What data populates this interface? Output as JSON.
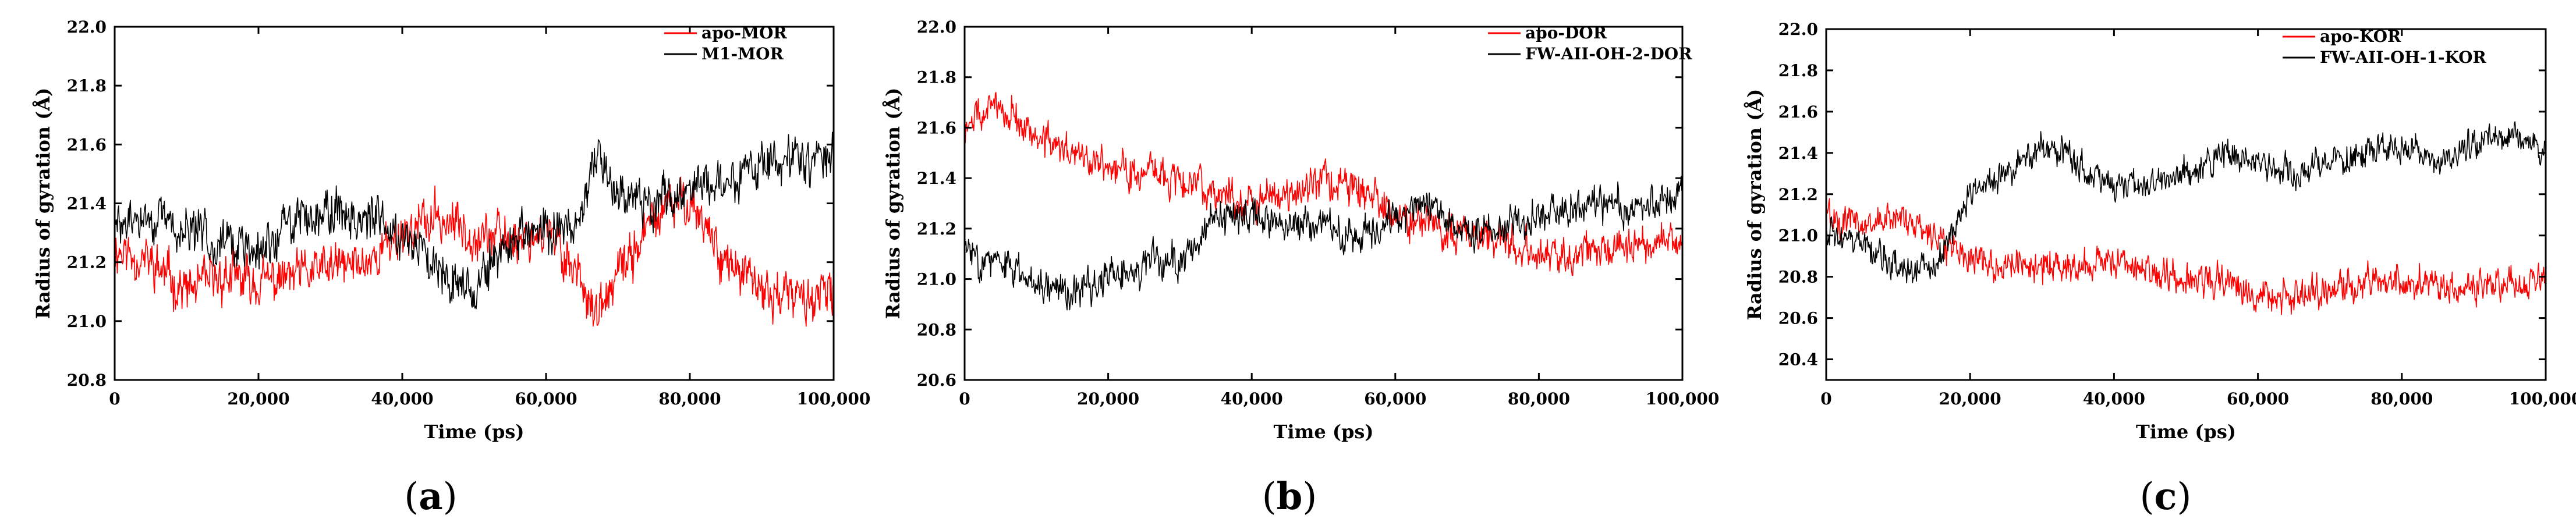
{
  "chart_data": [
    {
      "type": "line",
      "panel_label": "a",
      "xlabel": "Time (ps)",
      "ylabel": "Radius of gyration (Å)",
      "xlim": [
        0,
        100000
      ],
      "ylim": [
        20.8,
        22.0
      ],
      "xticks": [
        "0",
        "20,000",
        "40,000",
        "60,000",
        "80,000",
        "100,000"
      ],
      "yticks": [
        "20.8",
        "21.0",
        "21.2",
        "21.4",
        "21.6",
        "21.8",
        "22.0"
      ],
      "legend_position": "top-right",
      "series": [
        {
          "name": "apo-MOR",
          "color": "#ff0000",
          "noise": 0.09,
          "seed": 11,
          "x": [
            0,
            5000,
            10000,
            15000,
            20000,
            25000,
            30000,
            35000,
            40000,
            45000,
            50000,
            55000,
            60000,
            65000,
            67000,
            70000,
            75000,
            80000,
            85000,
            90000,
            95000,
            100000
          ],
          "y": [
            21.25,
            21.2,
            21.1,
            21.15,
            21.13,
            21.15,
            21.18,
            21.2,
            21.3,
            21.35,
            21.3,
            21.28,
            21.3,
            21.15,
            21.0,
            21.15,
            21.35,
            21.42,
            21.2,
            21.1,
            21.08,
            21.08
          ]
        },
        {
          "name": "M1-MOR",
          "color": "#000000",
          "noise": 0.09,
          "seed": 29,
          "x": [
            0,
            5000,
            10000,
            15000,
            20000,
            25000,
            30000,
            35000,
            40000,
            45000,
            50000,
            55000,
            60000,
            65000,
            67000,
            70000,
            75000,
            80000,
            85000,
            90000,
            95000,
            100000
          ],
          "y": [
            21.32,
            21.35,
            21.3,
            21.28,
            21.22,
            21.35,
            21.38,
            21.35,
            21.3,
            21.2,
            21.1,
            21.28,
            21.3,
            21.35,
            21.55,
            21.45,
            21.4,
            21.45,
            21.48,
            21.52,
            21.55,
            21.55
          ]
        }
      ]
    },
    {
      "type": "line",
      "panel_label": "b",
      "xlabel": "Time (ps)",
      "ylabel": "Radius of gyration (Å)",
      "xlim": [
        0,
        100000
      ],
      "ylim": [
        20.6,
        22.0
      ],
      "xticks": [
        "0",
        "20,000",
        "40,000",
        "60,000",
        "80,000",
        "100,000"
      ],
      "yticks": [
        "20.6",
        "20.8",
        "21.0",
        "21.2",
        "21.4",
        "21.6",
        "21.8",
        "22.0"
      ],
      "legend_position": "top-right",
      "series": [
        {
          "name": "apo-DOR",
          "color": "#ff0000",
          "noise": 0.08,
          "seed": 47,
          "x": [
            0,
            5000,
            10000,
            15000,
            20000,
            25000,
            30000,
            35000,
            40000,
            45000,
            50000,
            55000,
            60000,
            65000,
            70000,
            75000,
            80000,
            85000,
            90000,
            95000,
            100000
          ],
          "y": [
            21.6,
            21.7,
            21.55,
            21.5,
            21.45,
            21.42,
            21.4,
            21.35,
            21.3,
            21.35,
            21.4,
            21.35,
            21.25,
            21.2,
            21.2,
            21.15,
            21.1,
            21.1,
            21.12,
            21.15,
            21.12
          ]
        },
        {
          "name": "FW-AII-OH-2-DOR",
          "color": "#000000",
          "noise": 0.08,
          "seed": 83,
          "x": [
            0,
            5000,
            10000,
            15000,
            20000,
            25000,
            30000,
            35000,
            40000,
            45000,
            50000,
            55000,
            60000,
            65000,
            70000,
            75000,
            80000,
            85000,
            90000,
            95000,
            100000
          ],
          "y": [
            21.12,
            21.05,
            21.0,
            20.95,
            21.0,
            21.05,
            21.08,
            21.22,
            21.25,
            21.22,
            21.2,
            21.18,
            21.25,
            21.3,
            21.2,
            21.2,
            21.25,
            21.28,
            21.3,
            21.28,
            21.35
          ]
        }
      ]
    },
    {
      "type": "line",
      "panel_label": "c",
      "xlabel": "Time (ps)",
      "ylabel": "Radius of gyration (Å)",
      "xlim": [
        0,
        100000
      ],
      "ylim": [
        20.3,
        22.0
      ],
      "xticks": [
        "0",
        "20,000",
        "40,000",
        "60,000",
        "80,000",
        "100,000"
      ],
      "yticks": [
        "20.4",
        "20.6",
        "20.8",
        "21.0",
        "21.2",
        "21.4",
        "21.6",
        "21.8",
        "22.0"
      ],
      "legend_position": "top-right",
      "series": [
        {
          "name": "apo-KOR",
          "color": "#ff0000",
          "noise": 0.09,
          "seed": 101,
          "x": [
            0,
            5000,
            10000,
            15000,
            20000,
            25000,
            30000,
            35000,
            40000,
            45000,
            50000,
            55000,
            60000,
            65000,
            70000,
            75000,
            80000,
            85000,
            90000,
            95000,
            100000
          ],
          "y": [
            21.1,
            21.05,
            21.1,
            21.0,
            20.9,
            20.85,
            20.85,
            20.85,
            20.88,
            20.82,
            20.8,
            20.78,
            20.72,
            20.7,
            20.75,
            20.78,
            20.78,
            20.75,
            20.75,
            20.78,
            20.78
          ]
        },
        {
          "name": "FW-AII-OH-1-KOR",
          "color": "#000000",
          "noise": 0.08,
          "seed": 157,
          "x": [
            0,
            5000,
            10000,
            15000,
            20000,
            25000,
            30000,
            35000,
            40000,
            45000,
            50000,
            55000,
            60000,
            65000,
            70000,
            75000,
            80000,
            85000,
            90000,
            95000,
            100000
          ],
          "y": [
            21.05,
            20.95,
            20.85,
            20.85,
            21.2,
            21.3,
            21.45,
            21.35,
            21.25,
            21.25,
            21.3,
            21.4,
            21.35,
            21.3,
            21.35,
            21.4,
            21.45,
            21.35,
            21.45,
            21.5,
            21.4
          ]
        }
      ]
    }
  ]
}
